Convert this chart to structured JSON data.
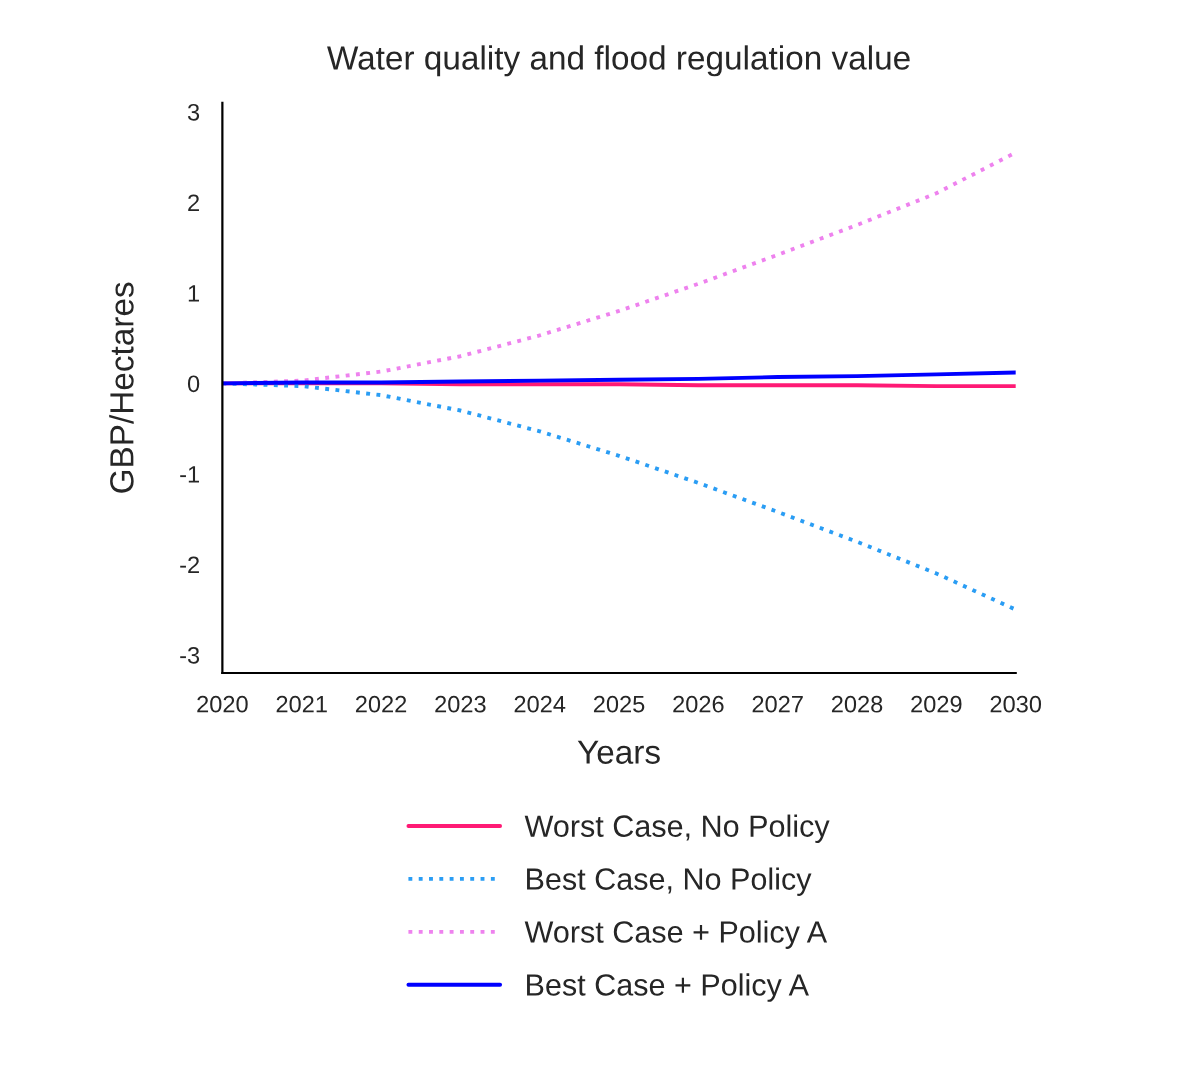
{
  "chart_data": {
    "type": "line",
    "title": "Water quality and flood regulation value",
    "xlabel": "Years",
    "ylabel": "GBP/Hectares",
    "x": [
      2020,
      2021,
      2022,
      2023,
      2024,
      2025,
      2026,
      2027,
      2028,
      2029,
      2030
    ],
    "series": [
      {
        "name": "Worst Case, No Policy",
        "color": "#ff1a75",
        "line_style": "solid",
        "values": [
          0,
          0,
          0,
          -0.01,
          -0.01,
          -0.01,
          -0.02,
          -0.02,
          -0.02,
          -0.03,
          -0.03
        ]
      },
      {
        "name": "Best Case, No Policy",
        "color": "#2a9df4",
        "line_style": "dotted",
        "values": [
          0,
          -0.03,
          -0.13,
          -0.3,
          -0.53,
          -0.8,
          -1.1,
          -1.42,
          -1.75,
          -2.1,
          -2.5
        ]
      },
      {
        "name": "Worst Case + Policy A",
        "color": "#ee82ee",
        "line_style": "dotted",
        "values": [
          0,
          0.03,
          0.13,
          0.3,
          0.53,
          0.8,
          1.1,
          1.42,
          1.75,
          2.1,
          2.55
        ]
      },
      {
        "name": "Best Case + Policy A",
        "color": "#0000ff",
        "line_style": "solid",
        "values": [
          0,
          0.01,
          0.01,
          0.02,
          0.03,
          0.04,
          0.05,
          0.07,
          0.08,
          0.1,
          0.12
        ]
      }
    ],
    "xlim": [
      2020,
      2030
    ],
    "xticks": [
      2020,
      2021,
      2022,
      2023,
      2024,
      2025,
      2026,
      2027,
      2028,
      2029,
      2030
    ],
    "ylim": [
      -3.2,
      3.1
    ],
    "yticks": [
      -3,
      -2,
      -1,
      0,
      1,
      2,
      3
    ],
    "grid": false,
    "legend": "bottom",
    "marker": "none"
  }
}
